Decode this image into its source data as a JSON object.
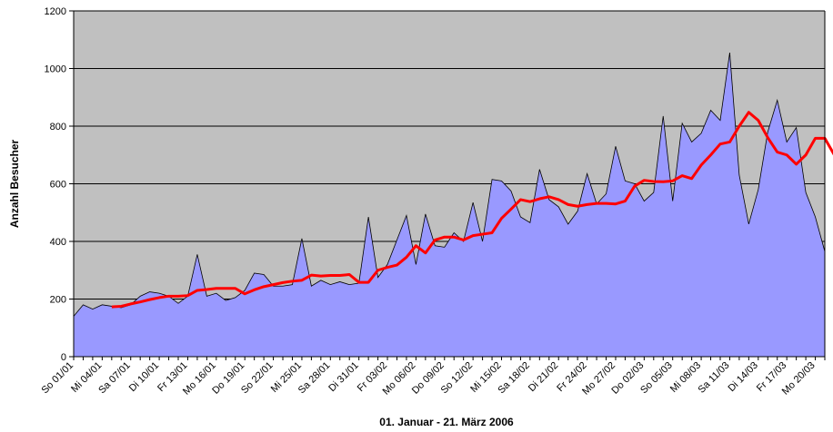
{
  "chart_data": {
    "type": "area",
    "xlabel": "01. Januar - 21. März 2006",
    "ylabel": "Anzahl Besucher",
    "ylim": [
      0,
      1200
    ],
    "yticks": [
      0,
      200,
      400,
      600,
      800,
      1000,
      1200
    ],
    "grid": true,
    "background_color": "#C0C0C0",
    "area_color": "#9999FF",
    "line_color": "#FF0000",
    "x_tick_labels": [
      "So 01/01",
      "Mi 04/01",
      "Sa 07/01",
      "Di 10/01",
      "Fr 13/01",
      "Mo 16/01",
      "Do 19/01",
      "So 22/01",
      "Mi 25/01",
      "Sa 28/01",
      "Di 31/01",
      "Fr 03/02",
      "Mo 06/02",
      "Do 09/02",
      "So 12/02",
      "Mi 15/02",
      "Sa 18/02",
      "Di 21/02",
      "Fr 24/02",
      "Mo 27/02",
      "Do 02/03",
      "So 05/03",
      "Mi 08/03",
      "Sa 11/03",
      "Di 14/03",
      "Fr 17/03",
      "Mo 20/03"
    ],
    "series": [
      {
        "chart_type": "area",
        "values": [
          140,
          180,
          165,
          180,
          175,
          170,
          180,
          210,
          225,
          220,
          210,
          185,
          210,
          355,
          210,
          220,
          195,
          205,
          230,
          290,
          285,
          245,
          245,
          250,
          410,
          245,
          265,
          250,
          260,
          250,
          255,
          485,
          275,
          320,
          405,
          490,
          320,
          495,
          385,
          380,
          430,
          400,
          535,
          400,
          615,
          610,
          575,
          485,
          465,
          650,
          545,
          520,
          460,
          505,
          635,
          530,
          565,
          730,
          610,
          600,
          540,
          570,
          835,
          540,
          810,
          745,
          775,
          855,
          820,
          1055,
          630,
          460,
          580,
          780,
          890,
          745,
          795,
          570,
          485,
          365
        ],
        "stroke_color": "#000000"
      },
      {
        "chart_type": "line",
        "start_index": 4,
        "values": [
          173,
          175,
          183,
          190,
          198,
          205,
          210,
          210,
          212,
          230,
          233,
          237,
          237,
          237,
          218,
          232,
          243,
          250,
          257,
          262,
          265,
          283,
          280,
          282,
          282,
          285,
          258,
          258,
          300,
          310,
          318,
          345,
          385,
          360,
          405,
          415,
          415,
          405,
          420,
          425,
          430,
          480,
          512,
          545,
          538,
          548,
          555,
          545,
          528,
          522,
          528,
          532,
          532,
          530,
          540,
          592,
          612,
          608,
          607,
          610,
          628,
          618,
          665,
          700,
          738,
          745,
          800,
          848,
          820,
          760,
          710,
          700,
          668,
          700,
          758,
          758,
          700,
          592
        ]
      }
    ]
  }
}
